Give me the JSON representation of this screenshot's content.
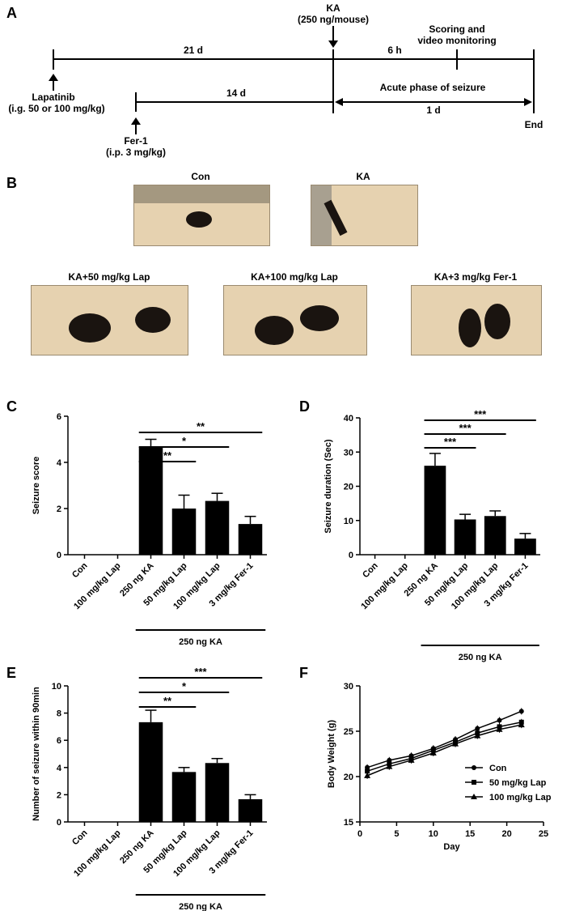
{
  "panel_a": {
    "letter": "A",
    "ka_label_1": "KA",
    "ka_label_2": "(250 ng/mouse)",
    "scoring_1": "Scoring and",
    "scoring_2": "video monitoring",
    "d21": "21 d",
    "h6": "6 h",
    "lap_1": "Lapatinib",
    "lap_2": "(i.g. 50 or 100 mg/kg)",
    "acute": "Acute phase of seizure",
    "d14": "14 d",
    "d1": "1 d",
    "end": "End",
    "fer_1": "Fer-1",
    "fer_2": "(i.p. 3 mg/kg)"
  },
  "panel_b": {
    "letter": "B",
    "photos": [
      "Con",
      "KA",
      "KA+50 mg/kg Lap",
      "KA+100 mg/kg Lap",
      "KA+3 mg/kg Fer-1"
    ]
  },
  "colors": {
    "bar": "#000000",
    "axis": "#000000",
    "bedding": "#e6d2b0",
    "mouse": "#1a1410"
  },
  "chart_data": [
    {
      "panel": "C",
      "type": "bar",
      "categories": [
        "Con",
        "100 mg/kg Lap",
        "250 ng KA",
        "50 mg/kg Lap",
        "100 mg/kg Lap",
        "3 mg/kg Fer-1"
      ],
      "values": [
        0,
        0,
        4.67,
        2.0,
        2.33,
        1.33
      ],
      "errors": [
        0,
        0,
        0.33,
        0.58,
        0.33,
        0.33
      ],
      "ylabel": "Seizure score",
      "ylim": [
        0,
        6
      ],
      "yticks": [
        0,
        2,
        4,
        6
      ],
      "group_label": "250 ng KA",
      "significance": [
        {
          "from": 2,
          "to": 3,
          "label": "**"
        },
        {
          "from": 2,
          "to": 4,
          "label": "*"
        },
        {
          "from": 2,
          "to": 5,
          "label": "**"
        }
      ]
    },
    {
      "panel": "D",
      "type": "bar",
      "categories": [
        "Con",
        "100 mg/kg Lap",
        "250 ng KA",
        "50 mg/kg Lap",
        "100 mg/kg Lap",
        "3 mg/kg Fer-1"
      ],
      "values": [
        0,
        0,
        26,
        10.3,
        11.3,
        4.7
      ],
      "errors": [
        0,
        0,
        3.6,
        1.5,
        1.5,
        1.5
      ],
      "ylabel": "Seizure duration (Sec)",
      "ylim": [
        0,
        40
      ],
      "yticks": [
        0,
        10,
        20,
        30,
        40
      ],
      "group_label": "250 ng KA",
      "significance": [
        {
          "from": 2,
          "to": 3,
          "label": "***"
        },
        {
          "from": 2,
          "to": 4,
          "label": "***"
        },
        {
          "from": 2,
          "to": 5,
          "label": "***"
        }
      ]
    },
    {
      "panel": "E",
      "type": "bar",
      "categories": [
        "Con",
        "100 mg/kg Lap",
        "250 ng KA",
        "50 mg/kg Lap",
        "100 mg/kg Lap",
        "3 mg/kg Fer-1"
      ],
      "values": [
        0,
        0,
        7.33,
        3.67,
        4.33,
        1.67
      ],
      "errors": [
        0,
        0,
        0.88,
        0.33,
        0.33,
        0.33
      ],
      "ylabel": "Number of seizure within 90min",
      "ylim": [
        0,
        10
      ],
      "yticks": [
        0,
        2,
        4,
        6,
        8,
        10
      ],
      "group_label": "250 ng KA",
      "significance": [
        {
          "from": 2,
          "to": 3,
          "label": "**"
        },
        {
          "from": 2,
          "to": 4,
          "label": "*"
        },
        {
          "from": 2,
          "to": 5,
          "label": "***"
        }
      ]
    },
    {
      "panel": "F",
      "type": "line",
      "xlabel": "Day",
      "ylabel": "Body Weight (g)",
      "xlim": [
        0,
        25
      ],
      "ylim": [
        15,
        30
      ],
      "xticks": [
        0,
        5,
        10,
        15,
        20,
        25
      ],
      "yticks": [
        15,
        20,
        25,
        30
      ],
      "x": [
        1,
        4,
        7,
        10,
        13,
        16,
        19,
        22
      ],
      "series": [
        {
          "name": "Con",
          "marker": "circle",
          "values": [
            21.0,
            21.8,
            22.3,
            23.1,
            24.1,
            25.3,
            26.2,
            27.2
          ]
        },
        {
          "name": "50 mg/kg Lap",
          "marker": "square",
          "values": [
            20.6,
            21.4,
            22.0,
            22.9,
            23.8,
            24.8,
            25.5,
            26.0
          ]
        },
        {
          "name": "100 mg/kg Lap",
          "marker": "triangle",
          "values": [
            20.1,
            21.1,
            21.8,
            22.6,
            23.6,
            24.5,
            25.2,
            25.7
          ]
        }
      ],
      "legend": "center-right"
    }
  ]
}
